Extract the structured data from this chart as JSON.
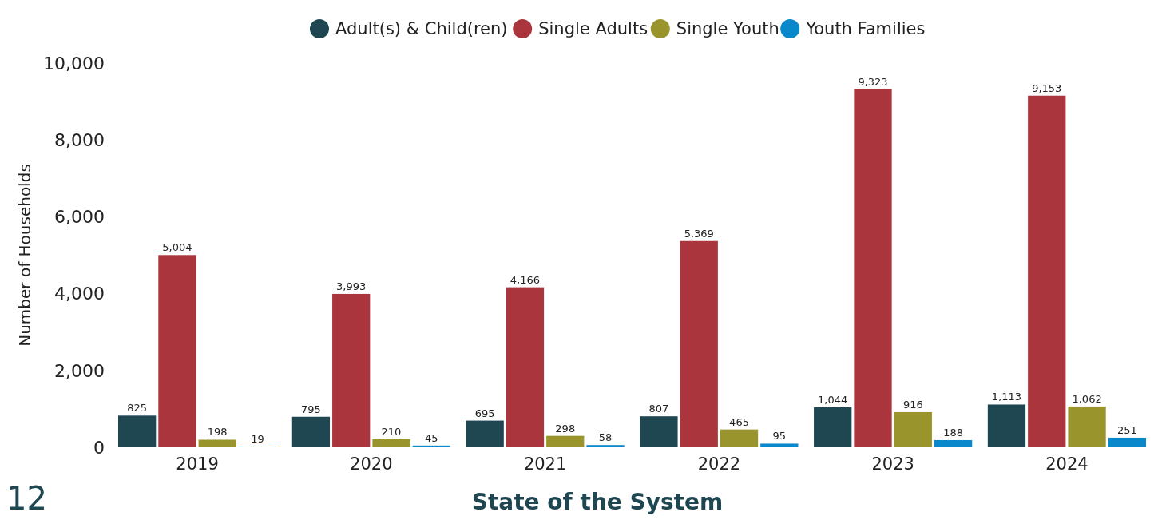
{
  "chart_data": {
    "type": "bar",
    "ylabel": "Number of Households",
    "categories": [
      "2019",
      "2020",
      "2021",
      "2022",
      "2023",
      "2024"
    ],
    "series": [
      {
        "name": "Adult(s) & Child(ren)",
        "color": "#1f4752",
        "values": [
          825,
          795,
          695,
          807,
          1044,
          1113
        ],
        "value_labels": [
          "825",
          "795",
          "695",
          "807",
          "1,044",
          "1,113"
        ]
      },
      {
        "name": "Single Adults",
        "color": "#ab353c",
        "values": [
          5004,
          3993,
          4166,
          5369,
          9323,
          9153
        ],
        "value_labels": [
          "5,004",
          "3,993",
          "4,166",
          "5,369",
          "9,323",
          "9,153"
        ]
      },
      {
        "name": "Single Youth",
        "color": "#9a942c",
        "values": [
          198,
          210,
          298,
          465,
          916,
          1062
        ],
        "value_labels": [
          "198",
          "210",
          "298",
          "465",
          "916",
          "1,062"
        ]
      },
      {
        "name": "Youth Families",
        "color": "#0a88cc",
        "values": [
          19,
          45,
          58,
          95,
          188,
          251
        ],
        "value_labels": [
          "19",
          "45",
          "58",
          "95",
          "188",
          "251"
        ]
      }
    ],
    "ylim": [
      0,
      10000
    ],
    "yticks": [
      {
        "value": 0,
        "label": "0"
      },
      {
        "value": 2000,
        "label": "2,000"
      },
      {
        "value": 4000,
        "label": "4,000"
      },
      {
        "value": 6000,
        "label": "6,000"
      },
      {
        "value": 8000,
        "label": "8,000"
      },
      {
        "value": 10000,
        "label": "10,000"
      }
    ],
    "legend": "top",
    "grid": false,
    "annotations": [
      "12",
      "State of the System"
    ]
  }
}
